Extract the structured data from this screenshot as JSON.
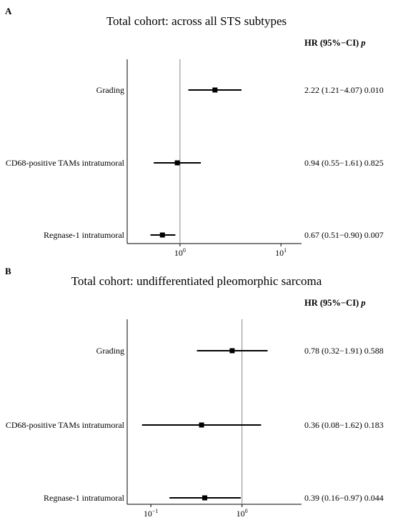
{
  "chart_data": [
    {
      "type": "forest",
      "panel_label": "A",
      "title": "Total cohort: across all STS subtypes",
      "header": {
        "hr": "HR (95%−CI)",
        "p": "p"
      },
      "x_scale": "log",
      "xlim": [
        0.3,
        16
      ],
      "x_ticks": [
        {
          "value": 1,
          "base": "10",
          "exp": "0"
        },
        {
          "value": 10,
          "base": "10",
          "exp": "1"
        }
      ],
      "reference_line": 1,
      "rows": [
        {
          "label": "Grading",
          "hr": 2.22,
          "ci_low": 1.21,
          "ci_high": 4.07,
          "p": "0.010",
          "text": "2.22 (1.21−4.07) 0.010"
        },
        {
          "label": "CD68-positive TAMs intratumoral",
          "hr": 0.94,
          "ci_low": 0.55,
          "ci_high": 1.61,
          "p": "0.825",
          "text": "0.94 (0.55−1.61) 0.825"
        },
        {
          "label": "Regnase-1 intratumoral",
          "hr": 0.67,
          "ci_low": 0.51,
          "ci_high": 0.9,
          "p": "0.007",
          "text": "0.67 (0.51−0.90) 0.007"
        }
      ]
    },
    {
      "type": "forest",
      "panel_label": "B",
      "title": "Total cohort: undifferentiated pleomorphic sarcoma",
      "header": {
        "hr": "HR (95%−CI)",
        "p": "p"
      },
      "x_scale": "log",
      "xlim": [
        0.055,
        4.5
      ],
      "x_ticks": [
        {
          "value": 0.1,
          "base": "10",
          "exp": "−1"
        },
        {
          "value": 1,
          "base": "10",
          "exp": "0"
        }
      ],
      "reference_line": 1,
      "rows": [
        {
          "label": "Grading",
          "hr": 0.78,
          "ci_low": 0.32,
          "ci_high": 1.91,
          "p": "0.588",
          "text": "0.78 (0.32−1.91) 0.588"
        },
        {
          "label": "CD68-positive TAMs intratumoral",
          "hr": 0.36,
          "ci_low": 0.08,
          "ci_high": 1.62,
          "p": "0.183",
          "text": "0.36 (0.08−1.62) 0.183"
        },
        {
          "label": "Regnase-1 intratumoral",
          "hr": 0.39,
          "ci_low": 0.16,
          "ci_high": 0.97,
          "p": "0.044",
          "text": "0.39 (0.16−0.97) 0.044"
        }
      ]
    }
  ]
}
